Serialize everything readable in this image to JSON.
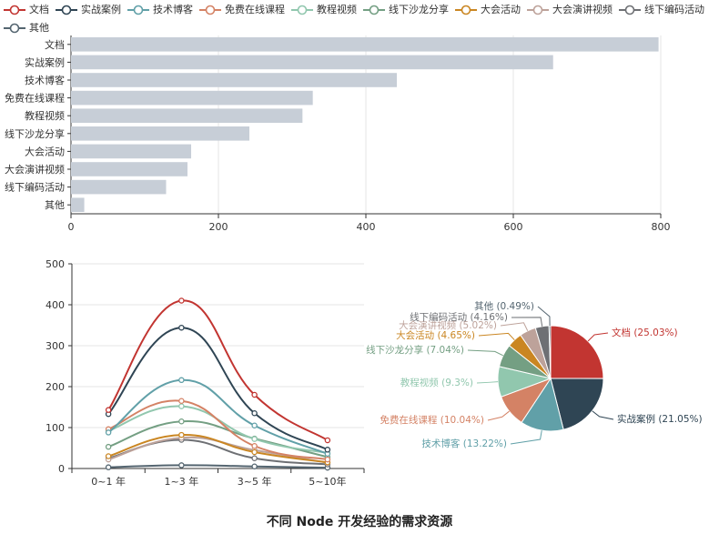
{
  "colors": [
    "#c23531",
    "#2f4554",
    "#61a0a8",
    "#d48265",
    "#91c7ae",
    "#749f83",
    "#ca8622",
    "#bda29a",
    "#6e7074",
    "#546570"
  ],
  "legend": [
    "文档",
    "实战案例",
    "技术博客",
    "免费在线课程",
    "教程视频",
    "线下沙龙分享",
    "大会活动",
    "大会演讲视频",
    "线下编码活动",
    "其他"
  ],
  "caption": "不同 Node 开发经验的需求资源",
  "chart_data": [
    {
      "type": "bar",
      "orientation": "horizontal",
      "categories": [
        "文档",
        "实战案例",
        "技术博客",
        "免费在线课程",
        "教程视频",
        "线下沙龙分享",
        "大会活动",
        "大会演讲视频",
        "线下编码活动",
        "其他"
      ],
      "values": [
        797,
        654,
        442,
        328,
        314,
        242,
        163,
        158,
        129,
        18
      ],
      "xlim": [
        0,
        800
      ],
      "xticks": [
        0,
        200,
        400,
        600,
        800
      ],
      "bar_color": "#c7ced7",
      "grid": true
    },
    {
      "type": "line",
      "smooth": true,
      "categories": [
        "0~1 年",
        "1~3 年",
        "3~5 年",
        "5~10年"
      ],
      "ylim": [
        0,
        500
      ],
      "yticks": [
        0,
        100,
        200,
        300,
        400,
        500
      ],
      "series": [
        {
          "name": "文档",
          "values": [
            143,
            410,
            180,
            69
          ]
        },
        {
          "name": "实战案例",
          "values": [
            133,
            344,
            135,
            46
          ]
        },
        {
          "name": "技术博客",
          "values": [
            88,
            216,
            105,
            36
          ]
        },
        {
          "name": "免费在线课程",
          "values": [
            96,
            165,
            55,
            22
          ]
        },
        {
          "name": "教程视频",
          "values": [
            92,
            152,
            72,
            38
          ]
        },
        {
          "name": "线下沙龙分享",
          "values": [
            53,
            115,
            73,
            28
          ]
        },
        {
          "name": "大会活动",
          "values": [
            30,
            82,
            40,
            15
          ]
        },
        {
          "name": "大会演讲视频",
          "values": [
            22,
            75,
            45,
            14
          ]
        },
        {
          "name": "线下编码活动",
          "values": [
            25,
            70,
            25,
            10
          ]
        },
        {
          "name": "其他",
          "values": [
            3,
            8,
            5,
            2
          ]
        }
      ]
    },
    {
      "type": "pie",
      "slices": [
        {
          "name": "文档",
          "value": 25.03,
          "label": "文档 (25.03%)"
        },
        {
          "name": "实战案例",
          "value": 21.05,
          "label": "实战案例 (21.05%)"
        },
        {
          "name": "技术博客",
          "value": 13.22,
          "label": "技术博客 (13.22%)"
        },
        {
          "name": "免费在线课程",
          "value": 10.04,
          "label": "免费在线课程 (10.04%)"
        },
        {
          "name": "教程视频",
          "value": 9.3,
          "label": "教程视频 (9.3%)"
        },
        {
          "name": "线下沙龙分享",
          "value": 7.04,
          "label": "线下沙龙分享 (7.04%)"
        },
        {
          "name": "大会活动",
          "value": 4.65,
          "label": "大会活动 (4.65%)"
        },
        {
          "name": "大会演讲视频",
          "value": 5.02,
          "label": "大会演讲视频 (5.02%)"
        },
        {
          "name": "线下编码活动",
          "value": 4.16,
          "label": "线下编码活动 (4.16%)"
        },
        {
          "name": "其他",
          "value": 0.49,
          "label": "其他 (0.49%)"
        }
      ]
    }
  ]
}
